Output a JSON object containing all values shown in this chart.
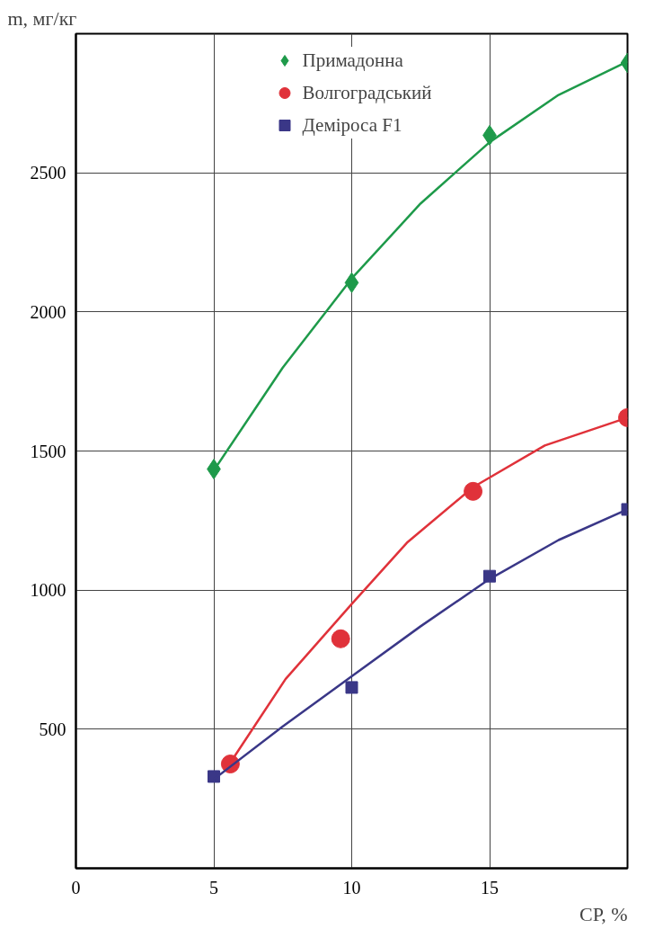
{
  "chart_data": {
    "type": "scatter",
    "xlabel": "СР, %",
    "ylabel": "m, мг/кг",
    "xlim": [
      0,
      20
    ],
    "ylim": [
      0,
      3000
    ],
    "xticks": [
      0,
      5,
      10,
      15
    ],
    "yticks": [
      500,
      1000,
      1500,
      2000,
      2500
    ],
    "grid": true,
    "legend": "top",
    "series": [
      {
        "name": "Примадонна",
        "marker": "diamond",
        "color": "#1e9a4a",
        "x": [
          5,
          10,
          15,
          20
        ],
        "values": [
          1435,
          2105,
          2635,
          2895
        ]
      },
      {
        "name": "Волгоградський",
        "marker": "circle",
        "color": "#e0323a",
        "x": [
          5.6,
          9.6,
          14.4,
          20
        ],
        "values": [
          375,
          825,
          1355,
          1620
        ]
      },
      {
        "name": "Деміроса F1",
        "marker": "square",
        "color": "#3a3787",
        "x": [
          5,
          10,
          15,
          20
        ],
        "values": [
          330,
          650,
          1050,
          1290
        ]
      },
      {
        "type": "line",
        "color": "#1e9a4a",
        "x": [
          5,
          7.5,
          10,
          12.5,
          15,
          17.5,
          20
        ],
        "values": [
          1430,
          1800,
          2120,
          2390,
          2610,
          2780,
          2900
        ]
      },
      {
        "type": "line",
        "color": "#e0323a",
        "x": [
          5.6,
          7.6,
          10,
          12,
          14.4,
          17,
          20
        ],
        "values": [
          380,
          680,
          950,
          1170,
          1370,
          1520,
          1620
        ]
      },
      {
        "type": "line",
        "color": "#3a3787",
        "x": [
          5,
          7.5,
          10,
          12.5,
          15,
          17.5,
          20
        ],
        "values": [
          320,
          510,
          690,
          870,
          1040,
          1180,
          1290
        ]
      }
    ]
  }
}
